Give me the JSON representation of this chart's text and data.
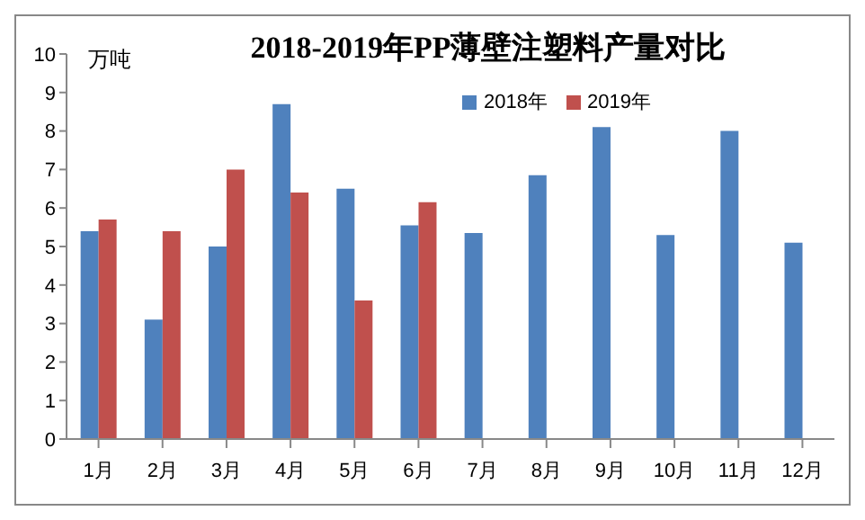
{
  "chart_data": {
    "type": "bar",
    "title": "2018-2019年PP薄壁注塑料产量对比",
    "ylabel": "万吨",
    "categories": [
      "1月",
      "2月",
      "3月",
      "4月",
      "5月",
      "6月",
      "7月",
      "8月",
      "9月",
      "10月",
      "11月",
      "12月"
    ],
    "series": [
      {
        "name": "2018年",
        "color": "#4f81bd",
        "values": [
          5.4,
          3.1,
          5.0,
          8.7,
          6.5,
          5.55,
          5.35,
          6.85,
          8.1,
          5.3,
          8.0,
          5.1
        ]
      },
      {
        "name": "2019年",
        "color": "#c0504d",
        "values": [
          5.7,
          5.4,
          7.0,
          6.4,
          3.6,
          6.15,
          null,
          null,
          null,
          null,
          null,
          null
        ]
      }
    ],
    "ylim": [
      0,
      10
    ],
    "yticks": [
      0,
      1,
      2,
      3,
      4,
      5,
      6,
      7,
      8,
      9,
      10
    ],
    "grid": false,
    "legend": "top right"
  }
}
